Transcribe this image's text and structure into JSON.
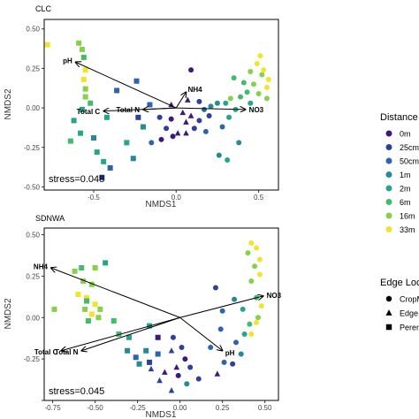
{
  "legend": {
    "distance_title": "Distance",
    "distance_items": [
      {
        "label": "0m",
        "color": "#3b1a7a"
      },
      {
        "label": "25cm",
        "color": "#2f3f9a"
      },
      {
        "label": "50cm",
        "color": "#2b66ad"
      },
      {
        "label": "1m",
        "color": "#238a96"
      },
      {
        "label": "2m",
        "color": "#27a589"
      },
      {
        "label": "6m",
        "color": "#42bb6c"
      },
      {
        "label": "16m",
        "color": "#86d14a"
      },
      {
        "label": "33m",
        "color": "#f0e52a"
      }
    ],
    "edge_title": "Edge Loc",
    "edge_items": [
      {
        "label": "CropM",
        "shape": "circle"
      },
      {
        "label": "Edge",
        "shape": "triangle"
      },
      {
        "label": "Peren",
        "shape": "square"
      }
    ]
  },
  "chart_data": [
    {
      "type": "scatter",
      "title": "CLC",
      "xlabel": "NMDS1",
      "ylabel": "NMDS2",
      "xlim": [
        -0.8,
        0.62
      ],
      "ylim": [
        -0.52,
        0.56
      ],
      "xticks": [
        {
          "v": -0.5,
          "label": "-0.5"
        },
        {
          "v": 0,
          "label": "0.0"
        },
        {
          "v": 0.5,
          "label": "0.5"
        }
      ],
      "yticks": [
        {
          "v": -0.5,
          "label": "-0.50"
        },
        {
          "v": -0.25,
          "label": "-0.25"
        },
        {
          "v": 0,
          "label": "0.00"
        },
        {
          "v": 0.25,
          "label": "0.25"
        },
        {
          "v": 0.5,
          "label": "0.50"
        }
      ],
      "grid": false,
      "annotation": "stress=0.048",
      "vectors": [
        {
          "label": "pH",
          "x": -0.61,
          "y": 0.29
        },
        {
          "label": "Total C",
          "x": -0.44,
          "y": -0.02
        },
        {
          "label": "Total N",
          "x": -0.2,
          "y": -0.01
        },
        {
          "label": "NH4",
          "x": 0.06,
          "y": 0.1
        },
        {
          "label": "NO3",
          "x": 0.42,
          "y": -0.01
        }
      ],
      "points": [
        {
          "x": -0.78,
          "y": 0.4,
          "dist": 7,
          "shape": "square"
        },
        {
          "x": -0.59,
          "y": 0.41,
          "dist": 6,
          "shape": "square"
        },
        {
          "x": -0.57,
          "y": 0.37,
          "dist": 6,
          "shape": "square"
        },
        {
          "x": -0.56,
          "y": 0.32,
          "dist": 5,
          "shape": "square"
        },
        {
          "x": -0.55,
          "y": 0.24,
          "dist": 7,
          "shape": "square"
        },
        {
          "x": -0.56,
          "y": 0.18,
          "dist": 7,
          "shape": "square"
        },
        {
          "x": -0.55,
          "y": 0.12,
          "dist": 6,
          "shape": "square"
        },
        {
          "x": -0.55,
          "y": 0.07,
          "dist": 6,
          "shape": "square"
        },
        {
          "x": -0.52,
          "y": 0.03,
          "dist": 5,
          "shape": "square"
        },
        {
          "x": -0.57,
          "y": -0.01,
          "dist": 4,
          "shape": "square"
        },
        {
          "x": -0.62,
          "y": -0.08,
          "dist": 4,
          "shape": "square"
        },
        {
          "x": -0.58,
          "y": -0.16,
          "dist": 4,
          "shape": "square"
        },
        {
          "x": -0.64,
          "y": -0.21,
          "dist": 5,
          "shape": "square"
        },
        {
          "x": -0.5,
          "y": -0.19,
          "dist": 3,
          "shape": "square"
        },
        {
          "x": -0.48,
          "y": -0.28,
          "dist": 4,
          "shape": "square"
        },
        {
          "x": -0.44,
          "y": -0.34,
          "dist": 4,
          "shape": "square"
        },
        {
          "x": -0.45,
          "y": -0.44,
          "dist": 1,
          "shape": "square"
        },
        {
          "x": -0.4,
          "y": -0.38,
          "dist": 2,
          "shape": "square"
        },
        {
          "x": -0.3,
          "y": -0.22,
          "dist": 4,
          "shape": "square"
        },
        {
          "x": -0.26,
          "y": -0.32,
          "dist": 3,
          "shape": "square"
        },
        {
          "x": -0.24,
          "y": 0.17,
          "dist": 2,
          "shape": "square"
        },
        {
          "x": -0.36,
          "y": 0.11,
          "dist": 2,
          "shape": "square"
        },
        {
          "x": -0.42,
          "y": -0.06,
          "dist": 4,
          "shape": "square"
        },
        {
          "x": -0.2,
          "y": -0.12,
          "dist": 3,
          "shape": "square"
        },
        {
          "x": -0.23,
          "y": -0.06,
          "dist": 1,
          "shape": "square"
        },
        {
          "x": -0.16,
          "y": 0.02,
          "dist": 2,
          "shape": "square"
        },
        {
          "x": -0.15,
          "y": -0.22,
          "dist": 2,
          "shape": "circle"
        },
        {
          "x": -0.09,
          "y": -0.2,
          "dist": 0,
          "shape": "circle"
        },
        {
          "x": -0.02,
          "y": -0.18,
          "dist": 0,
          "shape": "circle"
        },
        {
          "x": -0.06,
          "y": -0.13,
          "dist": 1,
          "shape": "circle"
        },
        {
          "x": -0.03,
          "y": -0.07,
          "dist": 0,
          "shape": "circle"
        },
        {
          "x": -0.1,
          "y": -0.06,
          "dist": 1,
          "shape": "circle"
        },
        {
          "x": 0.01,
          "y": -0.16,
          "dist": 0,
          "shape": "triangle"
        },
        {
          "x": 0.06,
          "y": -0.16,
          "dist": 0,
          "shape": "triangle"
        },
        {
          "x": 0.06,
          "y": -0.09,
          "dist": 0,
          "shape": "triangle"
        },
        {
          "x": 0.09,
          "y": -0.05,
          "dist": 0,
          "shape": "triangle"
        },
        {
          "x": 0.04,
          "y": -0.03,
          "dist": 0,
          "shape": "triangle"
        },
        {
          "x": -0.03,
          "y": 0.02,
          "dist": 0,
          "shape": "triangle"
        },
        {
          "x": 0.07,
          "y": 0.05,
          "dist": 0,
          "shape": "triangle"
        },
        {
          "x": 0.09,
          "y": 0.24,
          "dist": 0,
          "shape": "circle"
        },
        {
          "x": 0.11,
          "y": -0.13,
          "dist": 1,
          "shape": "circle"
        },
        {
          "x": 0.14,
          "y": -0.08,
          "dist": 1,
          "shape": "circle"
        },
        {
          "x": 0.18,
          "y": -0.15,
          "dist": 2,
          "shape": "circle"
        },
        {
          "x": 0.2,
          "y": -0.05,
          "dist": 1,
          "shape": "circle"
        },
        {
          "x": 0.17,
          "y": -0.01,
          "dist": 2,
          "shape": "circle"
        },
        {
          "x": 0.14,
          "y": 0.04,
          "dist": 1,
          "shape": "circle"
        },
        {
          "x": 0.21,
          "y": 0.01,
          "dist": 3,
          "shape": "circle"
        },
        {
          "x": 0.25,
          "y": 0.03,
          "dist": 3,
          "shape": "circle"
        },
        {
          "x": 0.3,
          "y": 0.03,
          "dist": 4,
          "shape": "circle"
        },
        {
          "x": 0.32,
          "y": -0.06,
          "dist": 4,
          "shape": "circle"
        },
        {
          "x": 0.36,
          "y": -0.01,
          "dist": 4,
          "shape": "circle"
        },
        {
          "x": 0.39,
          "y": 0.07,
          "dist": 5,
          "shape": "circle"
        },
        {
          "x": 0.43,
          "y": 0.1,
          "dist": 5,
          "shape": "circle"
        },
        {
          "x": 0.45,
          "y": 0.03,
          "dist": 4,
          "shape": "circle"
        },
        {
          "x": 0.47,
          "y": 0.15,
          "dist": 6,
          "shape": "circle"
        },
        {
          "x": 0.5,
          "y": 0.09,
          "dist": 6,
          "shape": "circle"
        },
        {
          "x": 0.52,
          "y": 0.21,
          "dist": 6,
          "shape": "circle"
        },
        {
          "x": 0.55,
          "y": 0.13,
          "dist": 7,
          "shape": "circle"
        },
        {
          "x": 0.55,
          "y": 0.06,
          "dist": 6,
          "shape": "circle"
        },
        {
          "x": 0.49,
          "y": 0.28,
          "dist": 7,
          "shape": "circle"
        },
        {
          "x": 0.51,
          "y": 0.33,
          "dist": 7,
          "shape": "circle"
        },
        {
          "x": 0.53,
          "y": 0.24,
          "dist": 7,
          "shape": "circle"
        },
        {
          "x": 0.56,
          "y": 0.18,
          "dist": 7,
          "shape": "circle"
        },
        {
          "x": 0.45,
          "y": 0.23,
          "dist": 6,
          "shape": "circle"
        },
        {
          "x": 0.33,
          "y": 0.06,
          "dist": 6,
          "shape": "circle"
        },
        {
          "x": 0.35,
          "y": 0.19,
          "dist": 5,
          "shape": "circle"
        },
        {
          "x": 0.41,
          "y": 0.16,
          "dist": 5,
          "shape": "circle"
        },
        {
          "x": 0.28,
          "y": -0.12,
          "dist": 2,
          "shape": "circle"
        },
        {
          "x": 0.26,
          "y": -0.3,
          "dist": 3,
          "shape": "circle"
        },
        {
          "x": 0.38,
          "y": -0.22,
          "dist": 3,
          "shape": "circle"
        },
        {
          "x": 0.31,
          "y": -0.33,
          "dist": 4,
          "shape": "circle"
        }
      ]
    },
    {
      "type": "scatter",
      "title": "SDNWA",
      "xlabel": "NMDS1",
      "ylabel": "NMDS2",
      "xlim": [
        -0.8,
        0.58
      ],
      "ylim": [
        -0.5,
        0.54
      ],
      "xticks": [
        {
          "v": -0.75,
          "label": "-0.75"
        },
        {
          "v": -0.5,
          "label": "-0.50"
        },
        {
          "v": -0.25,
          "label": "-0.25"
        },
        {
          "v": 0,
          "label": "0.00"
        },
        {
          "v": 0.25,
          "label": "0.25"
        },
        {
          "v": 0.5,
          "label": "0.50"
        }
      ],
      "yticks": [
        {
          "v": -0.5,
          "label": ""
        },
        {
          "v": -0.25,
          "label": "-0.25"
        },
        {
          "v": 0,
          "label": "0.00"
        },
        {
          "v": 0.25,
          "label": "0.25"
        },
        {
          "v": 0.5,
          "label": "0.50"
        }
      ],
      "grid": false,
      "annotation": "stress=0.045",
      "vectors": [
        {
          "label": "NH4",
          "x": -0.76,
          "y": 0.3
        },
        {
          "label": "Total C",
          "x": -0.7,
          "y": -0.2
        },
        {
          "label": "Total N",
          "x": -0.58,
          "y": -0.2
        },
        {
          "label": "NO3",
          "x": 0.49,
          "y": 0.13
        },
        {
          "label": "pH",
          "x": 0.25,
          "y": -0.2
        }
      ],
      "points": [
        {
          "x": -0.74,
          "y": 0.05,
          "dist": 6,
          "shape": "square"
        },
        {
          "x": -0.62,
          "y": 0.28,
          "dist": 6,
          "shape": "square"
        },
        {
          "x": -0.58,
          "y": 0.3,
          "dist": 5,
          "shape": "square"
        },
        {
          "x": -0.5,
          "y": 0.3,
          "dist": 6,
          "shape": "square"
        },
        {
          "x": -0.44,
          "y": 0.33,
          "dist": 4,
          "shape": "square"
        },
        {
          "x": -0.57,
          "y": 0.22,
          "dist": 6,
          "shape": "square"
        },
        {
          "x": -0.52,
          "y": 0.2,
          "dist": 6,
          "shape": "square"
        },
        {
          "x": -0.6,
          "y": 0.14,
          "dist": 7,
          "shape": "square"
        },
        {
          "x": -0.55,
          "y": 0.12,
          "dist": 7,
          "shape": "square"
        },
        {
          "x": -0.5,
          "y": 0.08,
          "dist": 7,
          "shape": "square"
        },
        {
          "x": -0.56,
          "y": 0.05,
          "dist": 6,
          "shape": "square"
        },
        {
          "x": -0.52,
          "y": 0.02,
          "dist": 7,
          "shape": "square"
        },
        {
          "x": -0.47,
          "y": 0.05,
          "dist": 6,
          "shape": "square"
        },
        {
          "x": -0.48,
          "y": 0.0,
          "dist": 6,
          "shape": "square"
        },
        {
          "x": -0.54,
          "y": -0.02,
          "dist": 5,
          "shape": "square"
        },
        {
          "x": -0.55,
          "y": 0.1,
          "dist": 5,
          "shape": "square"
        },
        {
          "x": -0.39,
          "y": -0.02,
          "dist": 5,
          "shape": "square"
        },
        {
          "x": -0.36,
          "y": -0.1,
          "dist": 5,
          "shape": "square"
        },
        {
          "x": -0.3,
          "y": -0.12,
          "dist": 4,
          "shape": "square"
        },
        {
          "x": -0.31,
          "y": -0.2,
          "dist": 3,
          "shape": "square"
        },
        {
          "x": -0.26,
          "y": -0.24,
          "dist": 2,
          "shape": "square"
        },
        {
          "x": -0.24,
          "y": -0.28,
          "dist": 3,
          "shape": "square"
        },
        {
          "x": -0.2,
          "y": -0.2,
          "dist": 3,
          "shape": "square"
        },
        {
          "x": -0.18,
          "y": -0.27,
          "dist": 1,
          "shape": "square"
        },
        {
          "x": -0.13,
          "y": -0.22,
          "dist": 2,
          "shape": "square"
        },
        {
          "x": -0.18,
          "y": -0.05,
          "dist": 4,
          "shape": "square"
        },
        {
          "x": -0.13,
          "y": -0.12,
          "dist": 0,
          "shape": "square"
        },
        {
          "x": -0.17,
          "y": -0.31,
          "dist": 1,
          "shape": "triangle"
        },
        {
          "x": -0.12,
          "y": -0.38,
          "dist": 1,
          "shape": "triangle"
        },
        {
          "x": -0.09,
          "y": -0.33,
          "dist": 0,
          "shape": "triangle"
        },
        {
          "x": -0.05,
          "y": -0.2,
          "dist": 1,
          "shape": "triangle"
        },
        {
          "x": -0.02,
          "y": -0.3,
          "dist": 0,
          "shape": "triangle"
        },
        {
          "x": 0.01,
          "y": -0.18,
          "dist": 1,
          "shape": "circle"
        },
        {
          "x": -0.04,
          "y": -0.12,
          "dist": 1,
          "shape": "circle"
        },
        {
          "x": 0.03,
          "y": -0.25,
          "dist": 0,
          "shape": "circle"
        },
        {
          "x": 0.06,
          "y": -0.3,
          "dist": 1,
          "shape": "circle"
        },
        {
          "x": -0.01,
          "y": -0.35,
          "dist": 0,
          "shape": "circle"
        },
        {
          "x": 0.04,
          "y": -0.4,
          "dist": 3,
          "shape": "circle"
        },
        {
          "x": -0.05,
          "y": -0.44,
          "dist": 1,
          "shape": "triangle"
        },
        {
          "x": 0.11,
          "y": -0.37,
          "dist": 1,
          "shape": "circle"
        },
        {
          "x": 0.18,
          "y": -0.18,
          "dist": 2,
          "shape": "circle"
        },
        {
          "x": 0.24,
          "y": -0.07,
          "dist": 2,
          "shape": "circle"
        },
        {
          "x": 0.22,
          "y": -0.34,
          "dist": 0,
          "shape": "triangle"
        },
        {
          "x": 0.26,
          "y": -0.27,
          "dist": 2,
          "shape": "circle"
        },
        {
          "x": 0.31,
          "y": -0.28,
          "dist": 1,
          "shape": "circle"
        },
        {
          "x": 0.33,
          "y": -0.15,
          "dist": 2,
          "shape": "circle"
        },
        {
          "x": 0.36,
          "y": -0.22,
          "dist": 3,
          "shape": "circle"
        },
        {
          "x": 0.38,
          "y": -0.1,
          "dist": 4,
          "shape": "circle"
        },
        {
          "x": 0.41,
          "y": -0.04,
          "dist": 5,
          "shape": "circle"
        },
        {
          "x": 0.37,
          "y": 0.05,
          "dist": 4,
          "shape": "circle"
        },
        {
          "x": 0.32,
          "y": 0.11,
          "dist": 3,
          "shape": "circle"
        },
        {
          "x": 0.21,
          "y": 0.18,
          "dist": 1,
          "shape": "circle"
        },
        {
          "x": 0.25,
          "y": 0.04,
          "dist": 2,
          "shape": "circle"
        },
        {
          "x": 0.45,
          "y": 0.12,
          "dist": 5,
          "shape": "circle"
        },
        {
          "x": 0.42,
          "y": 0.22,
          "dist": 6,
          "shape": "circle"
        },
        {
          "x": 0.44,
          "y": 0.31,
          "dist": 6,
          "shape": "circle"
        },
        {
          "x": 0.4,
          "y": 0.39,
          "dist": 6,
          "shape": "circle"
        },
        {
          "x": 0.47,
          "y": 0.26,
          "dist": 7,
          "shape": "circle"
        },
        {
          "x": 0.47,
          "y": 0.35,
          "dist": 7,
          "shape": "circle"
        },
        {
          "x": 0.42,
          "y": 0.45,
          "dist": 7,
          "shape": "circle"
        },
        {
          "x": 0.45,
          "y": 0.42,
          "dist": 7,
          "shape": "circle"
        },
        {
          "x": 0.48,
          "y": 0.07,
          "dist": 7,
          "shape": "circle"
        },
        {
          "x": 0.46,
          "y": 0.0,
          "dist": 6,
          "shape": "circle"
        },
        {
          "x": 0.42,
          "y": -0.1,
          "dist": 7,
          "shape": "circle"
        },
        {
          "x": 0.45,
          "y": -0.03,
          "dist": 7,
          "shape": "circle"
        }
      ]
    }
  ]
}
